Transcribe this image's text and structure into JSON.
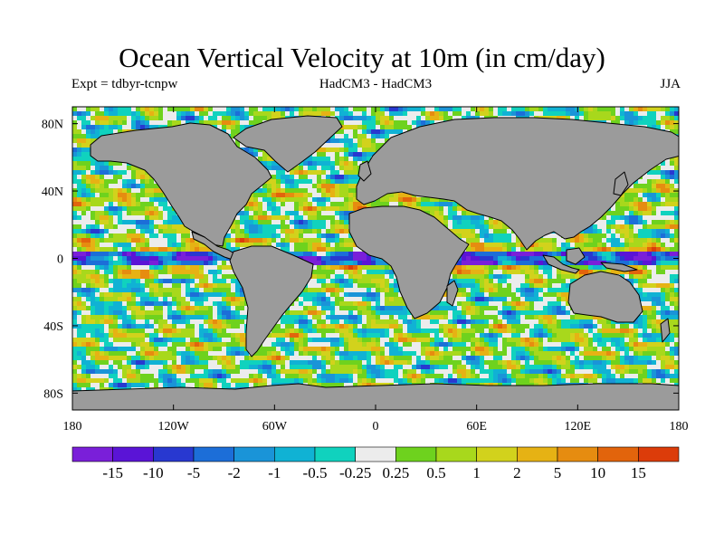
{
  "title": "Ocean Vertical Velocity at 10m (in cm/day)",
  "experiment": "Expt = tdbyr-tcnpw",
  "model": "HadCM3 - HadCM3",
  "season": "JJA",
  "map": {
    "projection": "equirectangular",
    "lon_range": [
      -180,
      180
    ],
    "lat_range": [
      -90,
      90
    ],
    "land_color": "#9b9b9b",
    "coastline_color": "#000000",
    "lon_ticks": [
      {
        "value": -180,
        "label": "180"
      },
      {
        "value": -120,
        "label": "120W"
      },
      {
        "value": -60,
        "label": "60W"
      },
      {
        "value": 0,
        "label": "0"
      },
      {
        "value": 60,
        "label": "60E"
      },
      {
        "value": 120,
        "label": "120E"
      },
      {
        "value": 180,
        "label": "180"
      }
    ],
    "lat_ticks": [
      {
        "value": 80,
        "label": "80N"
      },
      {
        "value": 40,
        "label": "40N"
      },
      {
        "value": 0,
        "label": "0"
      },
      {
        "value": -40,
        "label": "40S"
      },
      {
        "value": -80,
        "label": "80S"
      }
    ]
  },
  "colorbar": {
    "colors": [
      "#7a1fd9",
      "#5a14d6",
      "#2838d0",
      "#1c6ed8",
      "#1a94d8",
      "#10b2d4",
      "#10d2be",
      "#ececec",
      "#6ed21e",
      "#a8d81c",
      "#d2d21c",
      "#e6b214",
      "#e68c10",
      "#e2640c",
      "#dc3c0a"
    ],
    "labels": [
      "-15",
      "-10",
      "-5",
      "-2",
      "-1",
      "-0.5",
      "-0.25",
      "0.25",
      "0.5",
      "1",
      "2",
      "5",
      "10",
      "15"
    ]
  },
  "chart_data": {
    "type": "heatmap",
    "title": "Ocean Vertical Velocity at 10m (in cm/day)",
    "variable": "ocean vertical velocity at 10m",
    "units": "cm/day",
    "season": "JJA",
    "contour_levels": [
      -15,
      -10,
      -5,
      -2,
      -1,
      -0.5,
      -0.25,
      0.25,
      0.5,
      1,
      2,
      5,
      10,
      15
    ],
    "x_range": [
      -180,
      180
    ],
    "y_range": [
      -90,
      90
    ]
  }
}
